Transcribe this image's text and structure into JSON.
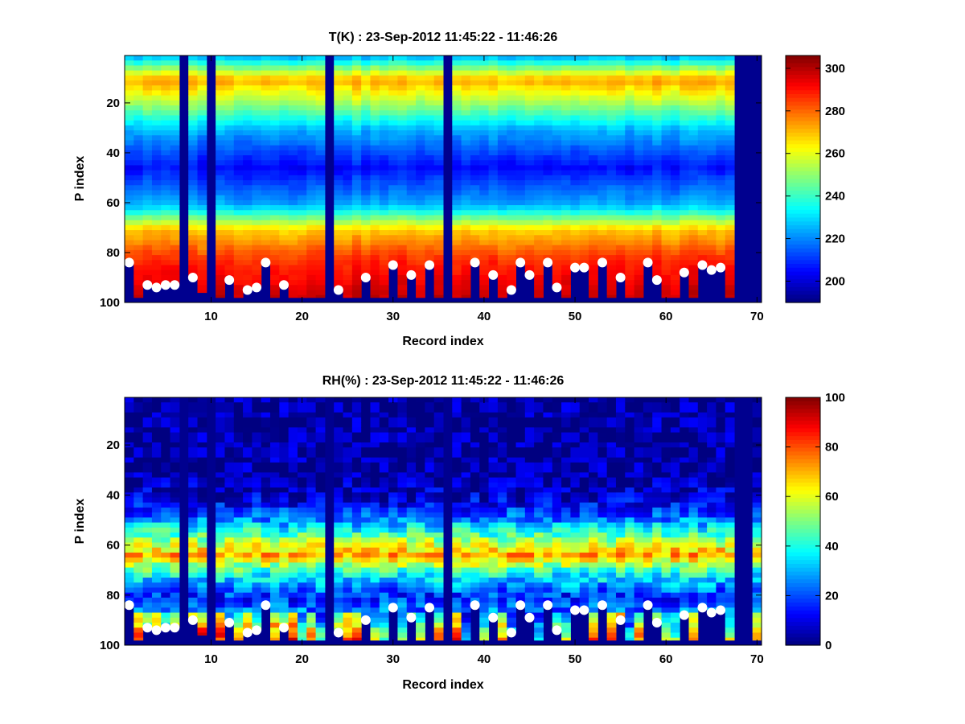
{
  "chart_data": [
    {
      "type": "heatmap",
      "title": "T(K) : 23-Sep-2012 11:45:22 - 11:46:26",
      "xlabel": "Record index",
      "ylabel": "P index",
      "xlim": [
        0.5,
        70.5
      ],
      "ylim": [
        1,
        100
      ],
      "y_direction": "reversed",
      "xticks": [
        10,
        20,
        30,
        40,
        50,
        60,
        70
      ],
      "yticks": [
        20,
        40,
        60,
        80,
        100
      ],
      "colormap": "jet",
      "clim": [
        190,
        306
      ],
      "colorbar_ticks": [
        200,
        220,
        240,
        260,
        280,
        300
      ],
      "profile": {
        "surface": 300,
        "warm_layer": 273,
        "cold_layer": 205,
        "top": 228,
        "layers_p": [
          1,
          10,
          18,
          30,
          45,
          60,
          70,
          82,
          100
        ]
      },
      "missing_records": [
        7,
        10,
        23,
        36,
        68,
        69,
        70
      ],
      "surface_p": [
        84,
        98,
        93,
        94,
        93,
        93,
        98,
        90,
        96,
        98,
        98,
        91,
        98,
        95,
        94,
        84,
        98,
        93,
        98,
        98,
        98,
        98,
        98,
        95,
        98,
        98,
        90,
        98,
        98,
        85,
        98,
        89,
        98,
        85,
        98,
        98,
        98,
        98,
        84,
        98,
        89,
        98,
        95,
        84,
        89,
        98,
        84,
        94,
        98,
        86,
        86,
        98,
        84,
        98,
        90,
        98,
        98,
        84,
        91,
        98,
        98,
        88,
        98,
        85,
        87,
        86,
        98,
        98,
        98,
        98
      ],
      "marker_points": [
        [
          1,
          84
        ],
        [
          3,
          93
        ],
        [
          4,
          94
        ],
        [
          5,
          93
        ],
        [
          6,
          93
        ],
        [
          8,
          90
        ],
        [
          12,
          91
        ],
        [
          14,
          95
        ],
        [
          15,
          94
        ],
        [
          16,
          84
        ],
        [
          18,
          93
        ],
        [
          24,
          95
        ],
        [
          27,
          90
        ],
        [
          30,
          85
        ],
        [
          32,
          89
        ],
        [
          34,
          85
        ],
        [
          39,
          84
        ],
        [
          41,
          89
        ],
        [
          43,
          95
        ],
        [
          44,
          84
        ],
        [
          45,
          89
        ],
        [
          47,
          84
        ],
        [
          48,
          94
        ],
        [
          50,
          86
        ],
        [
          51,
          86
        ],
        [
          53,
          84
        ],
        [
          55,
          90
        ],
        [
          58,
          84
        ],
        [
          59,
          91
        ],
        [
          62,
          88
        ],
        [
          64,
          85
        ],
        [
          65,
          87
        ],
        [
          66,
          86
        ]
      ]
    },
    {
      "type": "heatmap",
      "title": "RH(%) : 23-Sep-2012 11:45:22 - 11:46:26",
      "xlabel": "Record index",
      "ylabel": "P index",
      "xlim": [
        0.5,
        70.5
      ],
      "ylim": [
        1,
        100
      ],
      "y_direction": "reversed",
      "xticks": [
        10,
        20,
        30,
        40,
        50,
        60,
        70
      ],
      "yticks": [
        20,
        40,
        60,
        80,
        100
      ],
      "colormap": "jet",
      "clim": [
        0,
        100
      ],
      "colorbar_ticks": [
        0,
        20,
        40,
        60,
        80,
        100
      ],
      "profile": {
        "moist_layer_p": 64,
        "moist_layer_peak": 72,
        "upper_dry_p": 40,
        "lower_humid_peak": 95
      },
      "missing_records": [
        7,
        10,
        23,
        36,
        68,
        69
      ],
      "surface_p": [
        84,
        98,
        93,
        94,
        93,
        93,
        98,
        90,
        96,
        98,
        98,
        91,
        98,
        95,
        94,
        84,
        98,
        93,
        98,
        98,
        98,
        98,
        98,
        95,
        98,
        98,
        90,
        98,
        98,
        85,
        98,
        89,
        98,
        85,
        98,
        98,
        98,
        98,
        84,
        98,
        89,
        98,
        95,
        84,
        89,
        98,
        84,
        94,
        98,
        86,
        86,
        98,
        84,
        98,
        90,
        98,
        98,
        84,
        91,
        98,
        98,
        88,
        98,
        85,
        87,
        86,
        98,
        98,
        98,
        98
      ],
      "marker_points": [
        [
          1,
          84
        ],
        [
          3,
          93
        ],
        [
          4,
          94
        ],
        [
          5,
          93
        ],
        [
          6,
          93
        ],
        [
          8,
          90
        ],
        [
          12,
          91
        ],
        [
          14,
          95
        ],
        [
          15,
          94
        ],
        [
          16,
          84
        ],
        [
          18,
          93
        ],
        [
          24,
          95
        ],
        [
          27,
          90
        ],
        [
          30,
          85
        ],
        [
          32,
          89
        ],
        [
          34,
          85
        ],
        [
          39,
          84
        ],
        [
          41,
          89
        ],
        [
          43,
          95
        ],
        [
          44,
          84
        ],
        [
          45,
          89
        ],
        [
          47,
          84
        ],
        [
          48,
          94
        ],
        [
          50,
          86
        ],
        [
          51,
          86
        ],
        [
          53,
          84
        ],
        [
          55,
          90
        ],
        [
          58,
          84
        ],
        [
          59,
          91
        ],
        [
          62,
          88
        ],
        [
          64,
          85
        ],
        [
          65,
          87
        ],
        [
          66,
          86
        ]
      ]
    }
  ],
  "colors": {
    "axes_bg": "#00008f",
    "marker": "#ffffff",
    "frame": "#000000"
  }
}
